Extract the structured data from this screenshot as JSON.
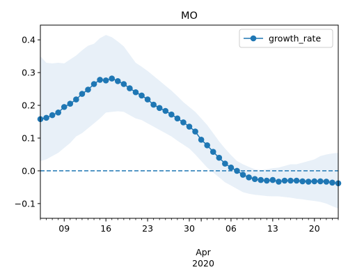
{
  "chart_data": {
    "type": "line",
    "title": "MO",
    "xlabel": "",
    "ylabel": "",
    "x_start": "2020-03-05",
    "x_end": "2020-04-24",
    "xlim": [
      "2020-03-05",
      "2020-04-24"
    ],
    "ylim": [
      -0.145,
      0.445
    ],
    "x_major_ticks": [
      {
        "date": "2020-03-09",
        "label": "09"
      },
      {
        "date": "2020-03-16",
        "label": "16"
      },
      {
        "date": "2020-03-23",
        "label": "23"
      },
      {
        "date": "2020-03-30",
        "label": "30"
      },
      {
        "date": "2020-04-06",
        "label": "06"
      },
      {
        "date": "2020-04-13",
        "label": "13"
      },
      {
        "date": "2020-04-20",
        "label": "20"
      }
    ],
    "x_secondary_label_month": "Apr",
    "x_secondary_label_year": "2020",
    "y_ticks": [
      -0.1,
      0.0,
      0.1,
      0.2,
      0.3,
      0.4
    ],
    "y_tick_labels": [
      "−0.1",
      "0.0",
      "0.1",
      "0.2",
      "0.3",
      "0.4"
    ],
    "legend": {
      "position": "top-right",
      "entries": [
        "growth_rate"
      ]
    },
    "grid": false,
    "reference_line": {
      "y": 0.0,
      "style": "dashed",
      "color": "#1f77b4"
    },
    "colors": {
      "series": "#1f77b4",
      "band": "#e8f0f8"
    },
    "series": [
      {
        "name": "growth_rate",
        "x": [
          "2020-03-05",
          "2020-03-06",
          "2020-03-07",
          "2020-03-08",
          "2020-03-09",
          "2020-03-10",
          "2020-03-11",
          "2020-03-12",
          "2020-03-13",
          "2020-03-14",
          "2020-03-15",
          "2020-03-16",
          "2020-03-17",
          "2020-03-18",
          "2020-03-19",
          "2020-03-20",
          "2020-03-21",
          "2020-03-22",
          "2020-03-23",
          "2020-03-24",
          "2020-03-25",
          "2020-03-26",
          "2020-03-27",
          "2020-03-28",
          "2020-03-29",
          "2020-03-30",
          "2020-03-31",
          "2020-04-01",
          "2020-04-02",
          "2020-04-03",
          "2020-04-04",
          "2020-04-05",
          "2020-04-06",
          "2020-04-07",
          "2020-04-08",
          "2020-04-09",
          "2020-04-10",
          "2020-04-11",
          "2020-04-12",
          "2020-04-13",
          "2020-04-14",
          "2020-04-15",
          "2020-04-16",
          "2020-04-17",
          "2020-04-18",
          "2020-04-19",
          "2020-04-20",
          "2020-04-21",
          "2020-04-22",
          "2020-04-23",
          "2020-04-24"
        ],
        "values": [
          0.158,
          0.162,
          0.17,
          0.178,
          0.195,
          0.205,
          0.218,
          0.235,
          0.248,
          0.265,
          0.278,
          0.276,
          0.282,
          0.274,
          0.265,
          0.252,
          0.24,
          0.23,
          0.218,
          0.202,
          0.192,
          0.183,
          0.172,
          0.16,
          0.148,
          0.135,
          0.12,
          0.095,
          0.078,
          0.058,
          0.04,
          0.022,
          0.01,
          0.0,
          -0.012,
          -0.02,
          -0.025,
          -0.028,
          -0.03,
          -0.028,
          -0.033,
          -0.03,
          -0.03,
          -0.03,
          -0.032,
          -0.033,
          -0.032,
          -0.032,
          -0.033,
          -0.036,
          -0.038
        ],
        "lower": [
          0.03,
          0.035,
          0.045,
          0.055,
          0.07,
          0.085,
          0.105,
          0.115,
          0.13,
          0.145,
          0.16,
          0.178,
          0.18,
          0.182,
          0.18,
          0.17,
          0.16,
          0.155,
          0.145,
          0.135,
          0.125,
          0.115,
          0.105,
          0.092,
          0.08,
          0.068,
          0.05,
          0.03,
          0.01,
          -0.005,
          -0.02,
          -0.035,
          -0.045,
          -0.055,
          -0.065,
          -0.07,
          -0.073,
          -0.075,
          -0.077,
          -0.078,
          -0.078,
          -0.08,
          -0.082,
          -0.085,
          -0.087,
          -0.09,
          -0.092,
          -0.095,
          -0.1,
          -0.108,
          -0.115
        ],
        "upper": [
          0.35,
          0.33,
          0.328,
          0.33,
          0.328,
          0.34,
          0.352,
          0.368,
          0.382,
          0.388,
          0.405,
          0.415,
          0.408,
          0.395,
          0.38,
          0.355,
          0.33,
          0.318,
          0.305,
          0.29,
          0.275,
          0.26,
          0.245,
          0.228,
          0.21,
          0.195,
          0.18,
          0.16,
          0.14,
          0.115,
          0.09,
          0.068,
          0.048,
          0.03,
          0.02,
          0.012,
          0.005,
          0.002,
          0.005,
          0.008,
          0.01,
          0.015,
          0.02,
          0.02,
          0.025,
          0.03,
          0.035,
          0.045,
          0.05,
          0.053,
          0.055
        ]
      }
    ]
  }
}
